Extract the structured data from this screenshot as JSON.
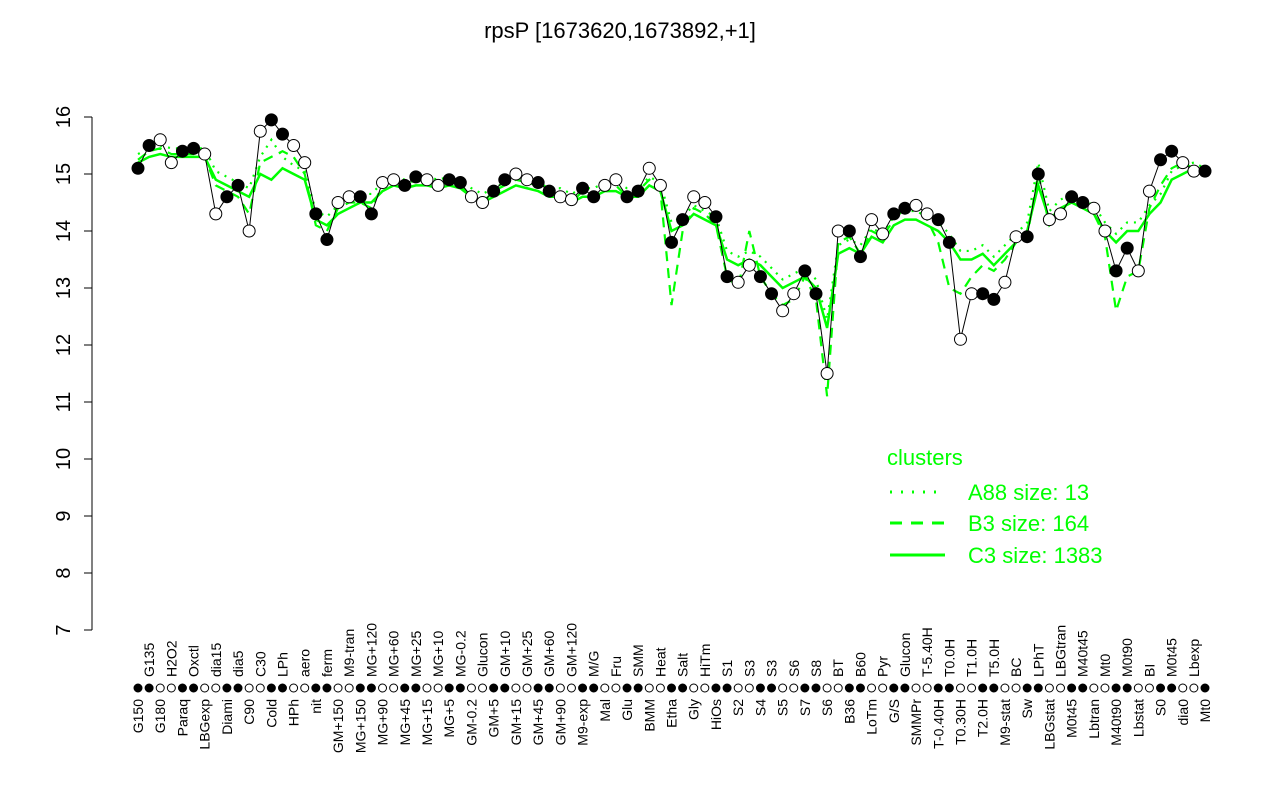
{
  "chart_data": {
    "type": "line",
    "title": "rpsP [1673620,1673892,+1]",
    "xlabel": "",
    "ylabel": "",
    "ylim": [
      7,
      16
    ],
    "yticks": [
      7,
      8,
      9,
      10,
      11,
      12,
      13,
      14,
      15,
      16
    ],
    "grid": false,
    "categories": [
      "G150",
      "G135",
      "G180",
      "H2O2",
      "Paraq",
      "Oxctl",
      "LBGexp",
      "dia15",
      "Diami",
      "dia5",
      "C90",
      "C30",
      "Cold",
      "LPh",
      "HPh",
      "aero",
      "nit",
      "ferm",
      "GM+150",
      "M9-tran",
      "MG+150",
      "MG+120",
      "MG+90",
      "MG+60",
      "MG+45",
      "MG+25",
      "MG+15",
      "MG+10",
      "MG+5",
      "MG-0.2",
      "GM-0.2",
      "Glucon",
      "GM+5",
      "GM+10",
      "GM+15",
      "GM+25",
      "GM+45",
      "GM+60",
      "GM+90",
      "GM+120",
      "M9-exp",
      "M/G",
      "Mal",
      "Fru",
      "Glu",
      "SMM",
      "BMM",
      "Heat",
      "Etha",
      "Salt",
      "Gly",
      "HiTm",
      "HiOs",
      "S1",
      "S2",
      "S3",
      "S4",
      "S3",
      "S5",
      "S6",
      "S7",
      "S8",
      "S6",
      "BT",
      "B36",
      "B60",
      "LoTm",
      "Pyr",
      "G/S",
      "Glucon",
      "SMMPr",
      "T-5.40H",
      "T-0.40H",
      "T0.0H",
      "T0.30H",
      "T1.0H",
      "T2.0H",
      "T5.0H",
      "M9-stat",
      "BC",
      "Sw",
      "LPhT",
      "LBGstat",
      "LBGtran",
      "M0t45",
      "M40t45",
      "Lbtran",
      "Mt0",
      "M40t90",
      "M0t90",
      "Lbstat",
      "BI",
      "S0",
      "M0t45",
      "dia0",
      "Lbexp",
      "Mt0"
    ],
    "values": [
      15.1,
      15.5,
      15.6,
      15.2,
      15.4,
      15.45,
      15.35,
      14.3,
      14.6,
      14.8,
      14.0,
      15.75,
      15.95,
      15.7,
      15.5,
      15.2,
      14.3,
      13.85,
      14.5,
      14.6,
      14.6,
      14.3,
      14.85,
      14.9,
      14.8,
      14.95,
      14.9,
      14.8,
      14.9,
      14.85,
      14.6,
      14.5,
      14.7,
      14.9,
      15.0,
      14.9,
      14.85,
      14.7,
      14.6,
      14.55,
      14.75,
      14.6,
      14.8,
      14.9,
      14.6,
      14.7,
      15.1,
      14.8,
      13.8,
      14.2,
      14.6,
      14.5,
      14.25,
      13.2,
      13.1,
      13.4,
      13.2,
      12.9,
      12.6,
      12.9,
      13.3,
      12.9,
      11.5,
      14.0,
      14.0,
      13.55,
      14.2,
      13.95,
      14.3,
      14.4,
      14.45,
      14.3,
      14.2,
      13.8,
      12.1,
      12.9,
      12.9,
      12.8,
      13.1,
      13.9,
      13.9,
      15.0,
      14.2,
      14.3,
      14.6,
      14.5,
      14.4,
      14.0,
      13.3,
      13.7,
      13.3,
      14.7,
      15.25,
      15.4,
      15.2,
      15.05,
      15.05
    ],
    "series": [
      {
        "name": "A88 size: 13",
        "style": "dotted",
        "values": [
          15.35,
          15.45,
          15.5,
          15.45,
          15.45,
          15.45,
          15.45,
          15.05,
          14.95,
          14.85,
          14.75,
          15.3,
          15.6,
          15.3,
          15.15,
          15.05,
          14.35,
          14.25,
          14.45,
          14.55,
          14.65,
          14.65,
          14.85,
          14.95,
          14.9,
          14.95,
          14.95,
          14.9,
          14.95,
          14.9,
          14.75,
          14.65,
          14.75,
          14.85,
          14.95,
          14.9,
          14.85,
          14.75,
          14.75,
          14.65,
          14.75,
          14.75,
          14.85,
          14.85,
          14.75,
          14.75,
          14.95,
          14.85,
          14.15,
          14.25,
          14.45,
          14.35,
          14.25,
          13.65,
          13.55,
          13.65,
          13.55,
          13.35,
          13.15,
          13.25,
          13.35,
          13.15,
          12.45,
          13.75,
          13.85,
          13.75,
          14.05,
          13.95,
          14.25,
          14.35,
          14.35,
          14.25,
          14.15,
          13.95,
          13.65,
          13.65,
          13.75,
          13.55,
          13.75,
          13.95,
          14.15,
          15.2,
          14.35,
          14.55,
          14.65,
          14.55,
          14.45,
          14.15,
          13.95,
          14.15,
          14.15,
          14.45,
          14.65,
          15.05,
          15.15,
          15.2,
          15.1
        ]
      },
      {
        "name": "B3 size: 164",
        "style": "dashed",
        "values": [
          15.25,
          15.4,
          15.45,
          15.35,
          15.35,
          15.35,
          15.3,
          14.8,
          14.7,
          14.6,
          14.3,
          15.2,
          15.3,
          15.4,
          15.3,
          15.0,
          14.1,
          14.0,
          14.4,
          14.5,
          14.5,
          14.4,
          14.8,
          14.9,
          14.8,
          14.9,
          14.85,
          14.8,
          14.85,
          14.8,
          14.6,
          14.5,
          14.7,
          14.8,
          14.9,
          14.85,
          14.8,
          14.7,
          14.6,
          14.5,
          14.7,
          14.6,
          14.8,
          14.8,
          14.6,
          14.7,
          14.9,
          14.7,
          12.7,
          14.0,
          14.4,
          14.3,
          14.1,
          13.2,
          13.0,
          14.0,
          13.2,
          12.9,
          12.7,
          12.8,
          13.2,
          12.8,
          11.1,
          13.8,
          13.9,
          13.6,
          14.0,
          13.9,
          14.2,
          14.4,
          14.4,
          14.2,
          13.8,
          13.0,
          12.9,
          13.2,
          13.4,
          13.3,
          13.5,
          13.8,
          13.9,
          15.0,
          14.1,
          14.3,
          14.6,
          14.4,
          14.3,
          13.9,
          12.6,
          13.2,
          13.3,
          14.4,
          14.8,
          15.1,
          15.2,
          15.1,
          15.05
        ]
      },
      {
        "name": "C3 size: 1383",
        "style": "solid",
        "values": [
          15.2,
          15.3,
          15.35,
          15.3,
          15.3,
          15.3,
          15.3,
          14.9,
          14.8,
          14.7,
          14.6,
          15.0,
          14.9,
          15.1,
          15.0,
          14.9,
          14.2,
          14.1,
          14.3,
          14.4,
          14.5,
          14.5,
          14.7,
          14.8,
          14.75,
          14.8,
          14.8,
          14.75,
          14.8,
          14.75,
          14.6,
          14.5,
          14.6,
          14.7,
          14.8,
          14.75,
          14.7,
          14.6,
          14.6,
          14.5,
          14.6,
          14.6,
          14.7,
          14.7,
          14.6,
          14.6,
          14.8,
          14.7,
          14.0,
          14.1,
          14.3,
          14.2,
          14.1,
          13.5,
          13.4,
          13.5,
          13.4,
          13.2,
          13.0,
          13.1,
          13.2,
          13.0,
          12.3,
          13.6,
          13.7,
          13.6,
          13.9,
          13.8,
          14.1,
          14.2,
          14.2,
          14.1,
          14.0,
          13.8,
          13.5,
          13.5,
          13.6,
          13.4,
          13.6,
          13.8,
          14.0,
          14.8,
          14.2,
          14.4,
          14.5,
          14.4,
          14.3,
          14.0,
          13.8,
          14.0,
          14.0,
          14.3,
          14.5,
          14.9,
          15.0,
          15.1,
          15.05
        ]
      }
    ],
    "legend": {
      "title": "clusters",
      "placement": "bottom-right"
    },
    "colors": {
      "clusters": "#00ff00",
      "points": "#000000"
    }
  }
}
